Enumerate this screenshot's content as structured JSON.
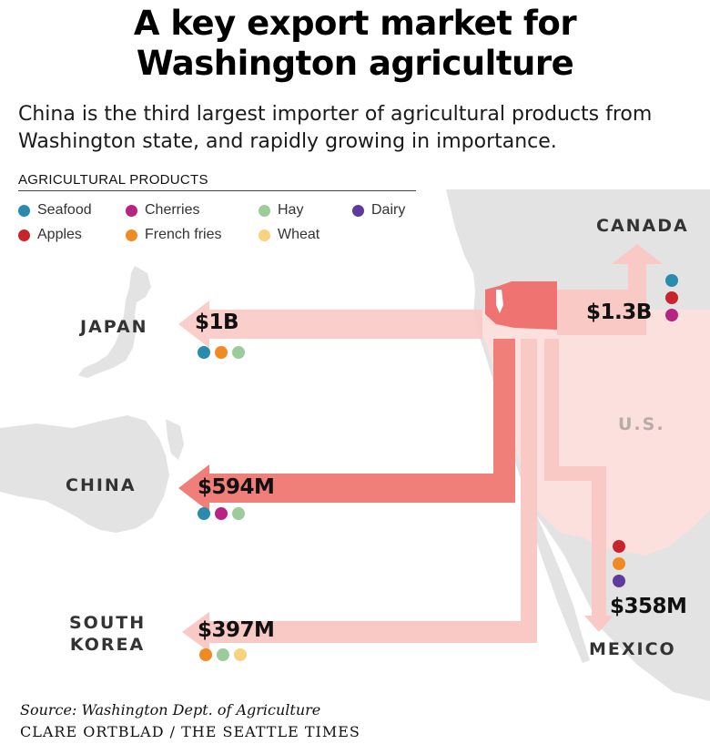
{
  "title_line1": "A key export market for",
  "title_line2": "Washington agriculture",
  "subtitle_line1": "China is the third largest importer of agricultural products from",
  "subtitle_line2": "Washington state, and rapidly growing in importance.",
  "legend": {
    "heading": "AGRICULTURAL PRODUCTS",
    "items": [
      {
        "label": "Seafood",
        "color": "#2a8cad"
      },
      {
        "label": "Cherries",
        "color": "#b72483"
      },
      {
        "label": "Hay",
        "color": "#9ccc9c"
      },
      {
        "label": "Dairy",
        "color": "#5d3a9b"
      },
      {
        "label": "Apples",
        "color": "#c9232d"
      },
      {
        "label": "French fries",
        "color": "#f08a24"
      },
      {
        "label": "Wheat",
        "color": "#f9d27e"
      }
    ]
  },
  "markets": {
    "japan": {
      "name": "JAPAN",
      "value": "$1B",
      "products": [
        "Seafood",
        "French fries",
        "Hay"
      ]
    },
    "china": {
      "name": "CHINA",
      "value": "$594M",
      "products": [
        "Seafood",
        "Cherries",
        "Hay"
      ]
    },
    "korea": {
      "name_line1": "SOUTH",
      "name_line2": "KOREA",
      "value": "$397M",
      "products": [
        "French fries",
        "Hay",
        "Wheat"
      ]
    },
    "canada": {
      "name": "CANADA",
      "value": "$1.3B",
      "products": [
        "Seafood",
        "Apples",
        "Cherries"
      ]
    },
    "mexico": {
      "name": "MEXICO",
      "value": "$358M",
      "products": [
        "Apples",
        "French fries",
        "Dairy"
      ]
    }
  },
  "us_label": "U.S.",
  "source": "Source: Washington Dept. of Agriculture",
  "credit": "CLARE ORTBLAD / THE SEATTLE TIMES",
  "colors": {
    "land": "#e3e3e3",
    "us_land": "#fbe0dd",
    "washington": "#ef7370",
    "arrow_light": "#f8c9c5",
    "arrow_china": "#f07e79"
  }
}
